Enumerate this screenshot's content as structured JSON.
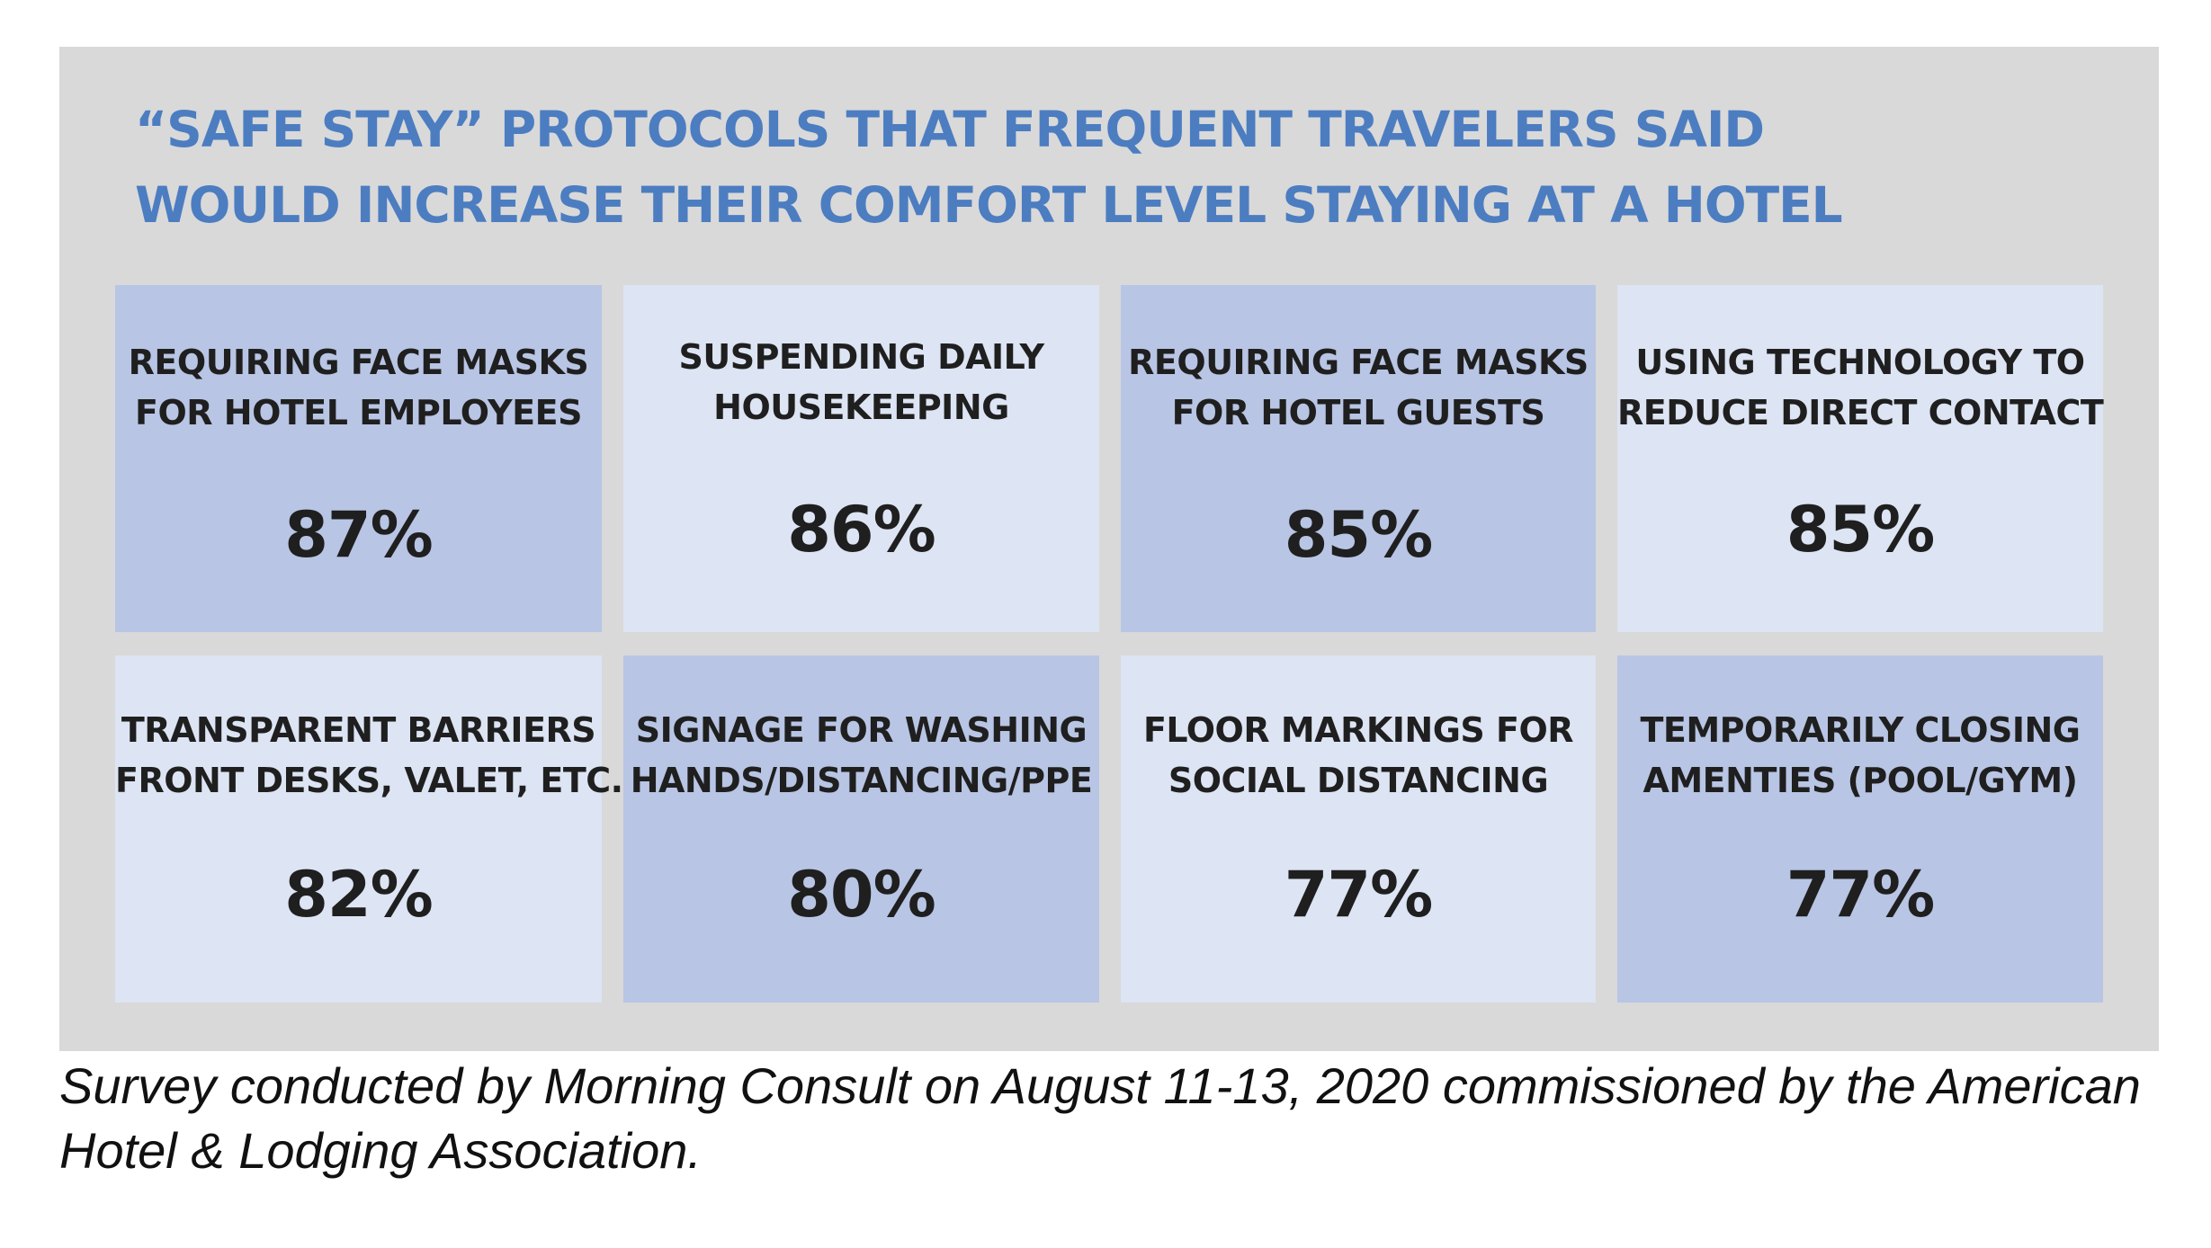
{
  "title": {
    "line1": "“SAFE STAY” PROTOCOLS  THAT FREQUENT TRAVELERS SAID",
    "line2": "WOULD INCREASE THEIR COMFORT LEVEL STAYING AT A HOTEL"
  },
  "colors": {
    "title": "#4c7dc1",
    "panel": "#d9d9d9",
    "tile_dark": "#b8c5e4",
    "tile_light": "#dde4f3",
    "text": "#1f1f1f"
  },
  "tiles": [
    {
      "line1": "REQUIRING FACE MASKS",
      "line2": "FOR HOTEL EMPLOYEES",
      "value": "87%"
    },
    {
      "line1": "SUSPENDING DAILY",
      "line2": "HOUSEKEEPING",
      "value": "86%"
    },
    {
      "line1": "REQUIRING FACE MASKS",
      "line2": "FOR HOTEL GUESTS",
      "value": "85%"
    },
    {
      "line1": "USING TECHNOLOGY TO",
      "line2": "REDUCE DIRECT CONTACT",
      "value": "85%"
    },
    {
      "line1": "TRANSPARENT BARRIERS",
      "line2": "FRONT DESKS, VALET, ETC.",
      "value": "82%"
    },
    {
      "line1": "SIGNAGE FOR WASHING",
      "line2": "HANDS/DISTANCING/PPE",
      "value": "80%"
    },
    {
      "line1": "FLOOR MARKINGS FOR",
      "line2": "SOCIAL DISTANCING",
      "value": "77%"
    },
    {
      "line1": "TEMPORARILY CLOSING",
      "line2": "AMENTIES (POOL/GYM)",
      "value": "77%"
    }
  ],
  "footnote": {
    "line1": "Survey conducted by Morning Consult on August 11-13, 2020 commissioned by the American",
    "line2": "Hotel & Lodging Association."
  }
}
